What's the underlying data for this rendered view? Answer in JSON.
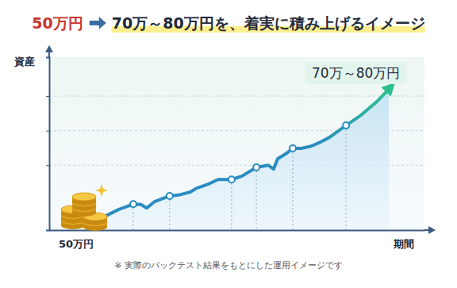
{
  "chart_data": {
    "type": "line",
    "title_parts": [
      "50万円",
      "70万～80万円を、着実に積み上げるイメージ"
    ],
    "y_label": "資産",
    "x_label": "期間",
    "annotations": {
      "start": "50万円",
      "target": "70万～80万円",
      "note": "※ 実際のバックテスト結果をもとにした運用イメージです"
    },
    "x": [
      14.4,
      18.6,
      22.4,
      24.5,
      26.0,
      28.1,
      32.1,
      34.5,
      37.6,
      39.3,
      42.3,
      45.0,
      48.6,
      51.4,
      55.2,
      58.4,
      59.8,
      60.9,
      63.0,
      64.9,
      67.2,
      69.8,
      71.9,
      74.6,
      79.1,
      83.1,
      87.3,
      90.5
    ],
    "xlim": [
      0,
      100
    ],
    "ylim": [
      47,
      87
    ],
    "yticks": [
      62,
      70,
      78
    ],
    "grid": true,
    "tick_labels": false,
    "series": [
      {
        "type": "area",
        "color": "#2a8cc0",
        "line_style": "solid",
        "values": [
          50.0,
          51.8,
          53.0,
          52.9,
          52.1,
          53.6,
          54.9,
          55.1,
          55.8,
          56.7,
          57.6,
          58.7,
          58.7,
          59.5,
          61.5,
          62.0,
          61.1,
          63.5,
          64.6,
          65.9,
          65.9,
          66.4,
          67.2,
          68.4,
          71.2,
          73.6,
          76.7,
          79.6
        ]
      },
      {
        "type": "scatter",
        "marker": "circle",
        "color": "#2a8cc0",
        "values": [
          null,
          null,
          53.0,
          null,
          null,
          null,
          54.9,
          null,
          null,
          null,
          null,
          null,
          58.7,
          null,
          61.5,
          null,
          null,
          null,
          null,
          65.9,
          null,
          null,
          null,
          null,
          71.2,
          null,
          null,
          null
        ]
      }
    ]
  }
}
